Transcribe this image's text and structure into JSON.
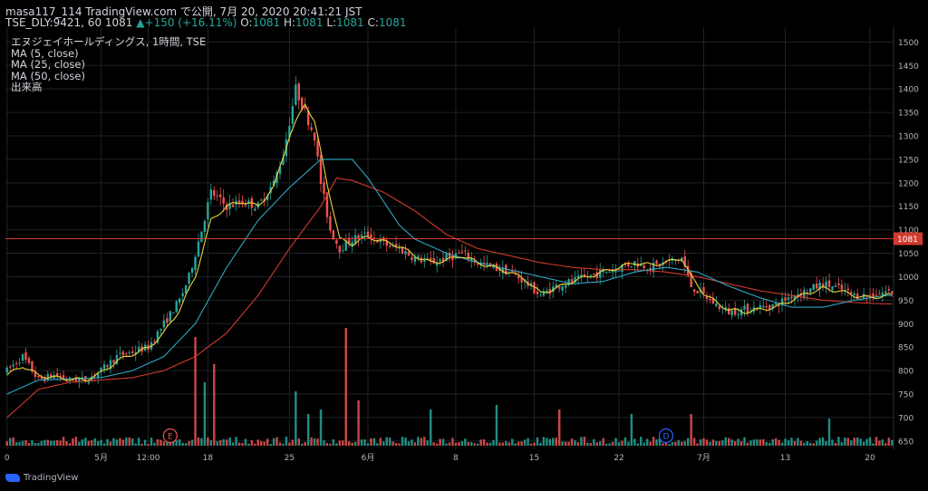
{
  "header": {
    "line1": "masa117_114 TradingView.com で公開, 7月 20, 2020 20:41:21 JST",
    "symbol": "TSE_DLY:9421, 60",
    "price": "1081",
    "change_arrow": "▲",
    "change": "+150 (+16.11%)",
    "o_label": "O:",
    "o_val": "1081",
    "h_label": "H:",
    "h_val": "1081",
    "l_label": "L:",
    "l_val": "1081",
    "c_label": "C:",
    "c_val": "1081"
  },
  "legend": {
    "name": "エヌジェイホールディングス, 1時間, TSE",
    "ma5": "MA (5, close)",
    "ma25": "MA (25, close)",
    "ma50": "MA (50, close)",
    "volume": "出来高"
  },
  "watermark": "TradingView",
  "colors": {
    "up": "#26a69a",
    "down": "#ef5350",
    "ma5": "#e8d33a",
    "ma25": "#2ca7c4",
    "ma50": "#d13b2f",
    "price_line": "#d13b2f",
    "grid": "#1e2226",
    "axis_text": "#b2b5be"
  },
  "chart_data": {
    "type": "candlestick",
    "y_ticks": [
      650,
      700,
      750,
      800,
      850,
      900,
      950,
      1000,
      1050,
      1100,
      1150,
      1200,
      1250,
      1300,
      1350,
      1400,
      1450,
      1500
    ],
    "ylim": [
      640,
      1520
    ],
    "current_price": 1081,
    "current_price_label": "1081",
    "x_ticks": [
      "0",
      "5月",
      "12:00",
      "18",
      "25",
      "6月",
      "8",
      "15",
      "22",
      "7月",
      "13",
      "20"
    ],
    "x_tick_bars": [
      0,
      30,
      45,
      64,
      90,
      115,
      143,
      168,
      195,
      222,
      248,
      275
    ],
    "bar_count": 283,
    "events": [
      {
        "label": "E",
        "bar": 52,
        "color": "#ef5350"
      },
      {
        "label": "D",
        "bar": 210,
        "color": "#2962ff"
      }
    ],
    "price_anchors": [
      [
        0,
        800
      ],
      [
        5,
        830
      ],
      [
        10,
        780
      ],
      [
        15,
        790
      ],
      [
        20,
        780
      ],
      [
        25,
        780
      ],
      [
        30,
        800
      ],
      [
        35,
        830
      ],
      [
        40,
        840
      ],
      [
        45,
        850
      ],
      [
        50,
        900
      ],
      [
        55,
        950
      ],
      [
        58,
        1000
      ],
      [
        62,
        1100
      ],
      [
        65,
        1180
      ],
      [
        70,
        1150
      ],
      [
        75,
        1160
      ],
      [
        80,
        1150
      ],
      [
        85,
        1200
      ],
      [
        88,
        1260
      ],
      [
        92,
        1400
      ],
      [
        95,
        1350
      ],
      [
        98,
        1300
      ],
      [
        100,
        1200
      ],
      [
        103,
        1100
      ],
      [
        106,
        1060
      ],
      [
        110,
        1080
      ],
      [
        115,
        1090
      ],
      [
        120,
        1070
      ],
      [
        125,
        1060
      ],
      [
        130,
        1040
      ],
      [
        135,
        1030
      ],
      [
        140,
        1040
      ],
      [
        145,
        1050
      ],
      [
        150,
        1030
      ],
      [
        155,
        1020
      ],
      [
        160,
        1010
      ],
      [
        165,
        990
      ],
      [
        170,
        960
      ],
      [
        175,
        980
      ],
      [
        180,
        990
      ],
      [
        185,
        1000
      ],
      [
        190,
        1010
      ],
      [
        195,
        1020
      ],
      [
        200,
        1030
      ],
      [
        205,
        1020
      ],
      [
        210,
        1030
      ],
      [
        215,
        1040
      ],
      [
        218,
        980
      ],
      [
        222,
        960
      ],
      [
        226,
        940
      ],
      [
        230,
        925
      ],
      [
        235,
        930
      ],
      [
        240,
        935
      ],
      [
        245,
        940
      ],
      [
        250,
        960
      ],
      [
        255,
        970
      ],
      [
        260,
        985
      ],
      [
        265,
        975
      ],
      [
        270,
        960
      ],
      [
        275,
        960
      ],
      [
        280,
        968
      ]
    ],
    "ma5_anchors": [
      [
        0,
        790
      ],
      [
        5,
        810
      ],
      [
        10,
        790
      ],
      [
        15,
        785
      ],
      [
        20,
        782
      ],
      [
        25,
        780
      ],
      [
        30,
        795
      ],
      [
        35,
        820
      ],
      [
        40,
        835
      ],
      [
        45,
        848
      ],
      [
        50,
        880
      ],
      [
        55,
        930
      ],
      [
        60,
        1000
      ],
      [
        65,
        1120
      ],
      [
        70,
        1150
      ],
      [
        75,
        1160
      ],
      [
        80,
        1150
      ],
      [
        85,
        1190
      ],
      [
        90,
        1300
      ],
      [
        95,
        1370
      ],
      [
        98,
        1330
      ],
      [
        102,
        1200
      ],
      [
        106,
        1080
      ],
      [
        110,
        1070
      ],
      [
        115,
        1085
      ],
      [
        120,
        1075
      ],
      [
        125,
        1065
      ],
      [
        130,
        1045
      ],
      [
        135,
        1030
      ],
      [
        140,
        1035
      ],
      [
        145,
        1045
      ],
      [
        150,
        1030
      ],
      [
        155,
        1020
      ],
      [
        160,
        1010
      ],
      [
        165,
        995
      ],
      [
        170,
        965
      ],
      [
        175,
        975
      ],
      [
        180,
        990
      ],
      [
        185,
        1000
      ],
      [
        190,
        1010
      ],
      [
        195,
        1020
      ],
      [
        200,
        1030
      ],
      [
        205,
        1025
      ],
      [
        210,
        1030
      ],
      [
        215,
        1040
      ],
      [
        218,
        1000
      ],
      [
        222,
        965
      ],
      [
        226,
        945
      ],
      [
        230,
        930
      ],
      [
        235,
        925
      ],
      [
        240,
        930
      ],
      [
        245,
        935
      ],
      [
        250,
        950
      ],
      [
        255,
        965
      ],
      [
        260,
        975
      ],
      [
        265,
        970
      ],
      [
        270,
        960
      ],
      [
        275,
        955
      ],
      [
        280,
        960
      ]
    ],
    "ma25_anchors": [
      [
        0,
        750
      ],
      [
        10,
        780
      ],
      [
        20,
        782
      ],
      [
        30,
        785
      ],
      [
        40,
        800
      ],
      [
        50,
        830
      ],
      [
        60,
        900
      ],
      [
        70,
        1020
      ],
      [
        80,
        1120
      ],
      [
        90,
        1190
      ],
      [
        100,
        1250
      ],
      [
        110,
        1250
      ],
      [
        115,
        1210
      ],
      [
        120,
        1160
      ],
      [
        125,
        1110
      ],
      [
        130,
        1080
      ],
      [
        140,
        1050
      ],
      [
        150,
        1030
      ],
      [
        160,
        1015
      ],
      [
        170,
        1000
      ],
      [
        180,
        985
      ],
      [
        190,
        990
      ],
      [
        200,
        1010
      ],
      [
        210,
        1020
      ],
      [
        220,
        1010
      ],
      [
        230,
        980
      ],
      [
        240,
        955
      ],
      [
        250,
        935
      ],
      [
        260,
        935
      ],
      [
        270,
        950
      ],
      [
        280,
        960
      ]
    ],
    "ma50_anchors": [
      [
        0,
        700
      ],
      [
        10,
        760
      ],
      [
        20,
        775
      ],
      [
        30,
        780
      ],
      [
        40,
        785
      ],
      [
        50,
        800
      ],
      [
        60,
        830
      ],
      [
        70,
        880
      ],
      [
        80,
        960
      ],
      [
        90,
        1060
      ],
      [
        100,
        1150
      ],
      [
        105,
        1210
      ],
      [
        110,
        1205
      ],
      [
        120,
        1180
      ],
      [
        130,
        1140
      ],
      [
        140,
        1090
      ],
      [
        150,
        1060
      ],
      [
        160,
        1045
      ],
      [
        170,
        1030
      ],
      [
        180,
        1020
      ],
      [
        190,
        1015
      ],
      [
        200,
        1015
      ],
      [
        210,
        1010
      ],
      [
        220,
        1000
      ],
      [
        230,
        985
      ],
      [
        240,
        970
      ],
      [
        250,
        960
      ],
      [
        260,
        950
      ],
      [
        270,
        945
      ],
      [
        280,
        942
      ]
    ],
    "volume_spikes": [
      [
        60,
        120
      ],
      [
        63,
        70
      ],
      [
        66,
        90
      ],
      [
        92,
        60
      ],
      [
        96,
        35
      ],
      [
        100,
        40
      ],
      [
        108,
        130
      ],
      [
        112,
        50
      ],
      [
        135,
        40
      ],
      [
        156,
        45
      ],
      [
        176,
        40
      ],
      [
        199,
        35
      ],
      [
        218,
        35
      ],
      [
        262,
        30
      ]
    ]
  }
}
